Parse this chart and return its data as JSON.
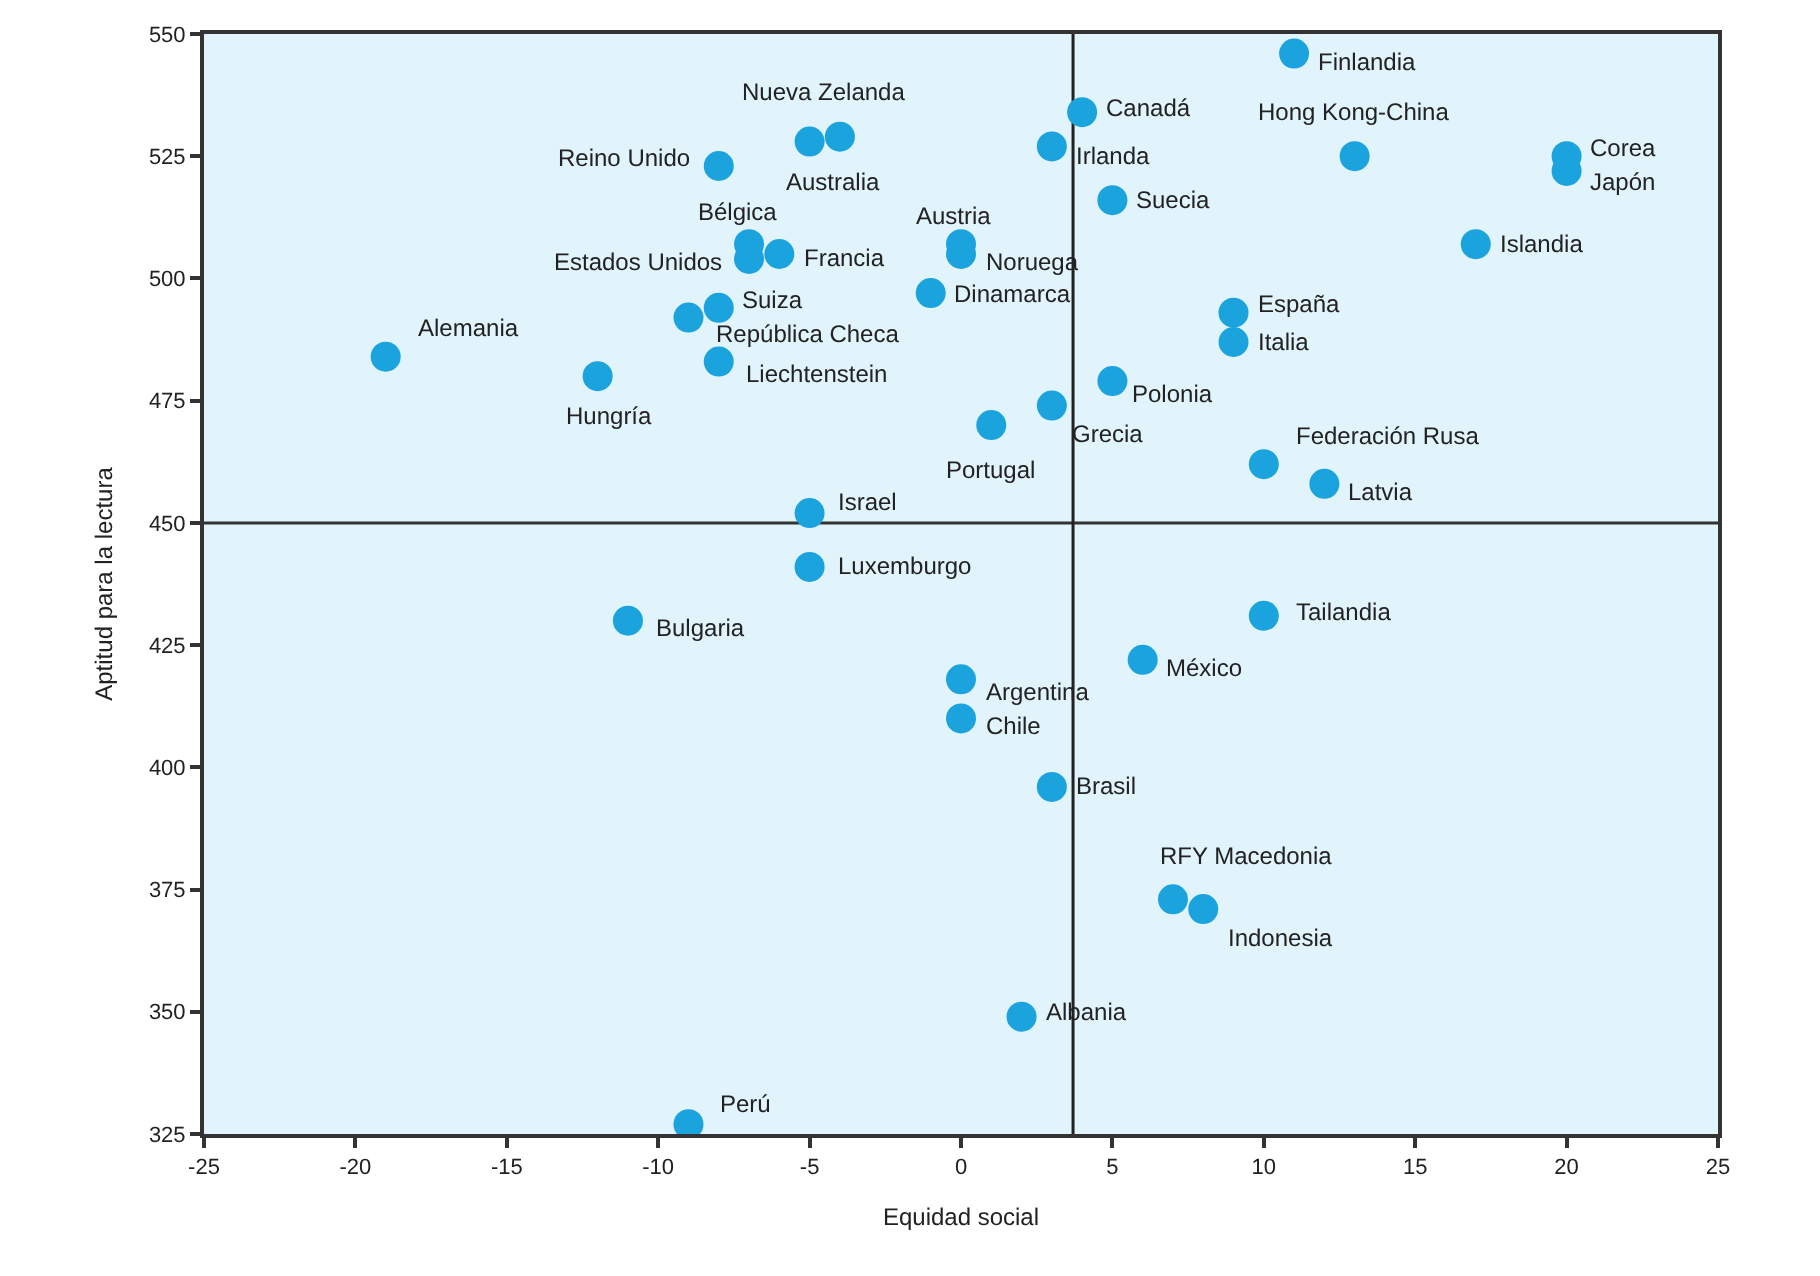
{
  "chart_data": {
    "type": "scatter",
    "xlabel": "Equidad social",
    "ylabel": "Aptitud para la lectura",
    "x": [
      11,
      4,
      -4,
      -5,
      -8,
      3,
      5,
      0,
      0,
      -7,
      -7,
      -6,
      -1,
      -8,
      -9,
      -19,
      -12,
      -8,
      1,
      3,
      5,
      9,
      9,
      10,
      12,
      13,
      20,
      20,
      17,
      -5,
      -5,
      -11,
      10,
      6,
      0,
      0,
      3,
      7,
      8,
      2,
      -9
    ],
    "values": [
      546,
      534,
      529,
      528,
      523,
      527,
      516,
      507,
      505,
      507,
      504,
      505,
      497,
      494,
      492,
      484,
      480,
      483,
      470,
      474,
      479,
      493,
      487,
      462,
      458,
      525,
      525,
      522,
      507,
      452,
      441,
      430,
      431,
      422,
      418,
      410,
      396,
      373,
      371,
      349,
      327
    ],
    "color": "#1ba3de",
    "marker": "circle",
    "grid": false,
    "legend": false,
    "xlim": [
      -25,
      25
    ],
    "xticks": [
      -25,
      -20,
      -15,
      -10,
      -5,
      0,
      5,
      10,
      15,
      20,
      25
    ],
    "ylim": [
      325,
      550
    ],
    "yticks": [
      325,
      350,
      375,
      400,
      425,
      450,
      475,
      500,
      525,
      550
    ],
    "ref_lines": [
      {
        "axis": "y",
        "value": 450,
        "color": "#333333"
      },
      {
        "axis": "x",
        "value": 3.7,
        "color": "#222222"
      }
    ],
    "annotations": [
      {
        "text": "Finlandia",
        "x": 11,
        "y": 546
      },
      {
        "text": "Canadá",
        "x": 4,
        "y": 534
      },
      {
        "text": "Nueva Zelanda",
        "x": -4,
        "y": 529
      },
      {
        "text": "Australia",
        "x": -5,
        "y": 528
      },
      {
        "text": "Reino Unido",
        "x": -8,
        "y": 523
      },
      {
        "text": "Irlanda",
        "x": 3,
        "y": 527
      },
      {
        "text": "Suecia",
        "x": 5,
        "y": 516
      },
      {
        "text": "Austria",
        "x": 0,
        "y": 507
      },
      {
        "text": "Noruega",
        "x": 0,
        "y": 505
      },
      {
        "text": "Bélgica",
        "x": -7,
        "y": 507
      },
      {
        "text": "Estados Unidos",
        "x": -7,
        "y": 504
      },
      {
        "text": "Francia",
        "x": -6,
        "y": 505
      },
      {
        "text": "Dinamarca",
        "x": -1,
        "y": 497
      },
      {
        "text": "Suiza",
        "x": -8,
        "y": 494
      },
      {
        "text": "República Checa",
        "x": -9,
        "y": 492
      },
      {
        "text": "Alemania",
        "x": -19,
        "y": 484
      },
      {
        "text": "Hungría",
        "x": -12,
        "y": 480
      },
      {
        "text": "Liechtenstein",
        "x": -8,
        "y": 483
      },
      {
        "text": "Portugal",
        "x": 1,
        "y": 470
      },
      {
        "text": "Grecia",
        "x": 3,
        "y": 474
      },
      {
        "text": "Polonia",
        "x": 5,
        "y": 479
      },
      {
        "text": "España",
        "x": 9,
        "y": 493
      },
      {
        "text": "Italia",
        "x": 9,
        "y": 487
      },
      {
        "text": "Federación Rusa",
        "x": 10,
        "y": 462
      },
      {
        "text": "Latvia",
        "x": 12,
        "y": 458
      },
      {
        "text": "Hong Kong-China",
        "x": 13,
        "y": 525
      },
      {
        "text": "Corea",
        "x": 20,
        "y": 525
      },
      {
        "text": "Japón",
        "x": 20,
        "y": 522
      },
      {
        "text": "Islandia",
        "x": 17,
        "y": 507
      },
      {
        "text": "Israel",
        "x": -5,
        "y": 452
      },
      {
        "text": "Luxemburgo",
        "x": -5,
        "y": 441
      },
      {
        "text": "Bulgaria",
        "x": -11,
        "y": 430
      },
      {
        "text": "Tailandia",
        "x": 10,
        "y": 431
      },
      {
        "text": "México",
        "x": 6,
        "y": 422
      },
      {
        "text": "Argentina",
        "x": 0,
        "y": 418
      },
      {
        "text": "Chile",
        "x": 0,
        "y": 410
      },
      {
        "text": "Brasil",
        "x": 3,
        "y": 396
      },
      {
        "text": "RFY Macedonia",
        "x": 7,
        "y": 373
      },
      {
        "text": "Indonesia",
        "x": 8,
        "y": 371
      },
      {
        "text": "Albania",
        "x": 2,
        "y": 349
      },
      {
        "text": "Perú",
        "x": -9,
        "y": 327
      }
    ]
  }
}
